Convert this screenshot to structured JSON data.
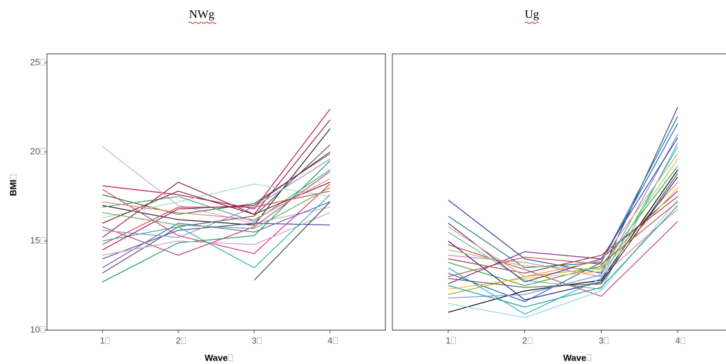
{
  "chart_data": [
    {
      "type": "line",
      "title": "NWg",
      "x_label": "Wave",
      "y_label": "BMI",
      "x": [
        1,
        2,
        3,
        4
      ],
      "xlim": [
        0.27,
        4.73
      ],
      "xticks": [
        1,
        2,
        3,
        4
      ],
      "ylim": [
        10,
        25.5
      ],
      "yticks": [
        10,
        15,
        20,
        25
      ],
      "series": [
        {
          "color": "#c0143c",
          "values": [
            18.1,
            17.6,
            16.8,
            22.4
          ]
        },
        {
          "color": "#222222",
          "values": [
            17.0,
            16.2,
            15.9,
            21.3
          ]
        },
        {
          "color": "#8b1a4a",
          "values": [
            15.2,
            18.3,
            16.5,
            21.8
          ]
        },
        {
          "color": "#d9a0e0",
          "values": [
            20.3,
            17.0,
            16.0,
            16.9
          ]
        },
        {
          "color": "#1a9a50",
          "values": [
            12.7,
            14.9,
            15.3,
            19.5
          ]
        },
        {
          "color": "#555555",
          "values": [
            13.2,
            15.8,
            16.4,
            20.4
          ]
        },
        {
          "color": "#e0306a",
          "values": [
            17.9,
            15.3,
            14.3,
            18.2
          ]
        },
        {
          "color": "#2e7d32",
          "values": [
            17.6,
            16.5,
            17.1,
            19.9
          ]
        },
        {
          "color": "#5050a0",
          "values": [
            14.0,
            15.6,
            16.0,
            15.9
          ]
        },
        {
          "color": "#a0d8c8",
          "values": [
            16.3,
            17.2,
            18.2,
            17.5
          ]
        },
        {
          "color": "#b04080",
          "values": [
            15.8,
            14.2,
            15.8,
            18.9
          ]
        },
        {
          "color": "#40a080",
          "values": [
            16.9,
            17.5,
            16.1,
            19.0
          ]
        },
        {
          "color": "#d04040",
          "values": [
            14.8,
            16.9,
            16.9,
            17.8
          ]
        },
        {
          "color": "#6060c0",
          "values": [
            13.5,
            16.0,
            15.5,
            17.2
          ]
        },
        {
          "color": "#c8a0d0",
          "values": [
            14.2,
            15.0,
            14.8,
            16.6
          ]
        },
        {
          "color": "#7a2020",
          "values": [
            16.0,
            17.8,
            16.5,
            18.3
          ]
        },
        {
          "color": "#20b0a0",
          "values": [
            15.0,
            15.8,
            13.5,
            17.6
          ]
        },
        {
          "color": "#e88080",
          "values": [
            17.2,
            16.6,
            16.2,
            18.5
          ]
        },
        {
          "color": "#305030",
          "values": [
            null,
            null,
            12.8,
            17.2
          ]
        },
        {
          "color": "#9090d0",
          "values": [
            15.6,
            15.2,
            16.9,
            19.6
          ]
        },
        {
          "color": "#a01060",
          "values": [
            14.5,
            16.8,
            17.0,
            20.0
          ]
        },
        {
          "color": "#60b060",
          "values": [
            16.6,
            15.9,
            15.7,
            18.0
          ]
        }
      ]
    },
    {
      "type": "line",
      "title": "Ug",
      "x_label": "Wave",
      "x": [
        1,
        2,
        3,
        4
      ],
      "xlim": [
        0.27,
        4.73
      ],
      "xticks": [
        1,
        2,
        3,
        4
      ],
      "ylim": [
        10,
        25.5
      ],
      "series": [
        {
          "color": "#3040a0",
          "values": [
            17.3,
            14.0,
            13.2,
            22.5
          ]
        },
        {
          "color": "#1f7a8c",
          "values": [
            16.4,
            13.5,
            13.8,
            22.0
          ]
        },
        {
          "color": "#000000",
          "values": [
            11.0,
            12.2,
            12.8,
            19.0
          ]
        },
        {
          "color": "#d04070",
          "values": [
            14.8,
            13.4,
            11.9,
            16.1
          ]
        },
        {
          "color": "#8fd0f0",
          "values": [
            11.5,
            10.7,
            12.2,
            17.3
          ]
        },
        {
          "color": "#2060c0",
          "values": [
            13.2,
            11.6,
            13.8,
            21.6
          ]
        },
        {
          "color": "#c0a030",
          "values": [
            12.0,
            13.0,
            13.5,
            18.3
          ]
        },
        {
          "color": "#60c0a0",
          "values": [
            15.5,
            12.8,
            12.3,
            20.5
          ]
        },
        {
          "color": "#802080",
          "values": [
            12.6,
            14.4,
            14.0,
            17.8
          ]
        },
        {
          "color": "#40a040",
          "values": [
            13.8,
            12.5,
            13.6,
            19.2
          ]
        },
        {
          "color": "#e080b0",
          "values": [
            14.2,
            13.8,
            13.0,
            16.8
          ]
        },
        {
          "color": "#202080",
          "values": [
            15.0,
            11.7,
            12.7,
            18.6
          ]
        },
        {
          "color": "#f0c040",
          "values": [
            12.3,
            12.9,
            13.3,
            18.0
          ]
        },
        {
          "color": "#30b0c0",
          "values": [
            13.5,
            10.9,
            12.9,
            20.3
          ]
        },
        {
          "color": "#904040",
          "values": [
            14.0,
            13.2,
            14.2,
            17.5
          ]
        },
        {
          "color": "#7090e0",
          "values": [
            11.8,
            12.0,
            13.1,
            21.0
          ]
        },
        {
          "color": "#555555",
          "values": [
            12.9,
            12.4,
            12.6,
            18.8
          ]
        },
        {
          "color": "#a0d060",
          "values": [
            14.5,
            13.6,
            13.4,
            19.6
          ]
        },
        {
          "color": "#c05050",
          "values": [
            13.0,
            14.1,
            13.7,
            17.2
          ]
        },
        {
          "color": "#5030a0",
          "values": [
            16.0,
            12.7,
            14.0,
            20.8
          ]
        },
        {
          "color": "#20a080",
          "values": [
            12.5,
            11.3,
            12.4,
            17.0
          ]
        },
        {
          "color": "#e0a060",
          "values": [
            15.8,
            13.0,
            13.9,
            19.9
          ]
        }
      ]
    }
  ]
}
